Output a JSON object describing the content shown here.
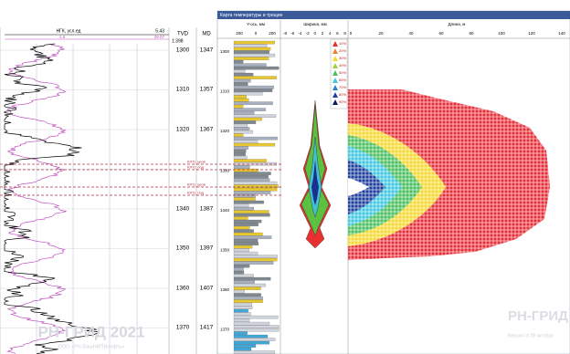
{
  "left_panel": {
    "curve_name": "НГК, усл.ед",
    "curve_max": "5.43",
    "curve2_min": "1.6",
    "curve2_max": "28.07",
    "scale": "1:398",
    "tvd_header": "TVD",
    "md_header": "MD",
    "tvd": [
      "1300",
      "1310",
      "1320",
      "1340",
      "1350",
      "1360",
      "1370"
    ],
    "md": [
      "1347",
      "1357",
      "1367",
      "1387",
      "1397",
      "1407",
      "1417"
    ],
    "markers": [
      "ЮП1_кров",
      "ЮП1_под",
      "ЮП1_кров",
      "ЮП1_под"
    ]
  },
  "window": {
    "title": "Карта температуры и трещин",
    "track_header": "Y-ось, мм",
    "track_ticks": [
      "200",
      "0",
      "200"
    ],
    "depth_ticks": [
      "1300",
      "1310",
      "1320",
      "1330",
      "1340",
      "1350",
      "1360",
      "1370"
    ],
    "width_label": "Ширина, мм",
    "width_ticks": [
      "-8",
      "-6",
      "-4",
      "-2",
      "0",
      "2",
      "4",
      "6",
      "8"
    ],
    "length_label": "Длина, м",
    "length_ticks": [
      "0",
      "20",
      "40",
      "60",
      "80",
      "100",
      "120",
      "140"
    ],
    "legend": [
      "10%",
      "20%",
      "30%",
      "40%",
      "50%",
      "60%",
      "70%",
      "80%",
      "90%"
    ]
  },
  "watermark": {
    "left": "РН-ГРИД 2021",
    "left_sub": "ООО «РН-БашНИПИнефть»",
    "right": "РН-ГРИД 20",
    "right_sub": "Версия от 28 октября"
  }
}
